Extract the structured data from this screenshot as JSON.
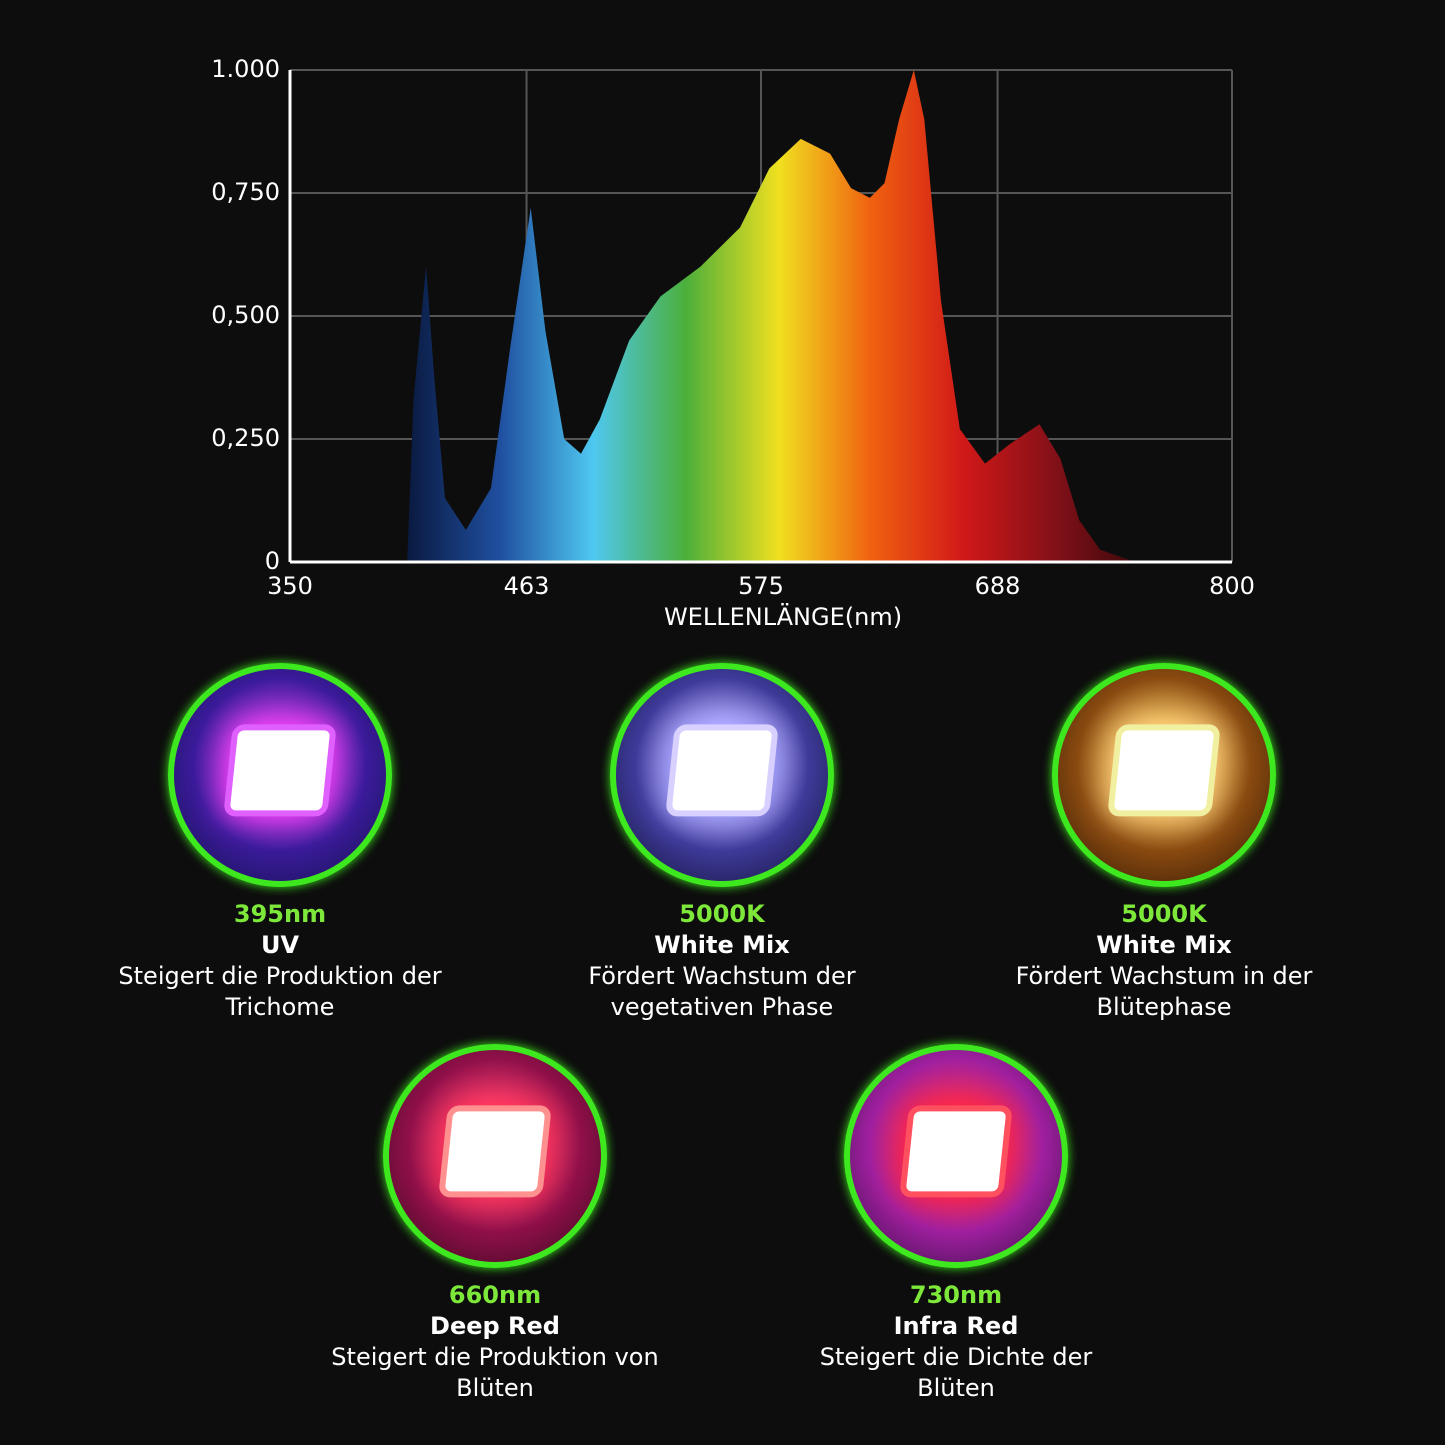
{
  "chart_data": {
    "type": "area",
    "x_label": "WELLENLÄNGE(nm)",
    "x": [
      406,
      409,
      415,
      419,
      424,
      434,
      446,
      455,
      465,
      472,
      481,
      489,
      498,
      512,
      527,
      546,
      565,
      579,
      594,
      608,
      618,
      627,
      634,
      641,
      648,
      653,
      661,
      670,
      682,
      694,
      708,
      718,
      727,
      737,
      751,
      761
    ],
    "values": [
      0,
      0.33,
      0.6,
      0.37,
      0.13,
      0.065,
      0.15,
      0.43,
      0.72,
      0.47,
      0.25,
      0.22,
      0.29,
      0.45,
      0.54,
      0.6,
      0.68,
      0.8,
      0.86,
      0.83,
      0.76,
      0.74,
      0.77,
      0.9,
      1.0,
      0.9,
      0.53,
      0.27,
      0.2,
      0.24,
      0.28,
      0.21,
      0.085,
      0.025,
      0.004,
      0
    ],
    "colors": [
      "#0a1a40",
      "#1f4fa0",
      "#4ec8f0",
      "#4caf3a",
      "#f0e020",
      "#f06010",
      "#d01818",
      "#801018",
      "#300808"
    ],
    "xlim": [
      350,
      800
    ],
    "ylim": [
      0,
      1
    ],
    "xticks": [
      350,
      463,
      575,
      688,
      800
    ],
    "yticks": [
      0,
      {
        "value": 0.25,
        "label": "0,250"
      },
      {
        "value": 0.5,
        "label": "0,500"
      },
      {
        "value": 0.75,
        "label": "0,750"
      },
      {
        "value": 1,
        "label": "1.000"
      }
    ],
    "grid": true
  },
  "leds": [
    {
      "label": "395nm",
      "name": "UV",
      "desc": [
        "Steigert die Produktion der",
        "Trichome"
      ]
    },
    {
      "label": "5000K",
      "name": "White Mix",
      "desc": [
        "Fördert Wachstum der",
        "vegetativen Phase"
      ]
    },
    {
      "label": "5000K",
      "name": "White Mix",
      "desc": [
        "Fördert Wachstum in der",
        "Blütephase"
      ]
    },
    {
      "label": "660nm",
      "name": "Deep Red",
      "desc": [
        "Steigert die Produktion von",
        "Blüten"
      ]
    },
    {
      "label": "730nm",
      "name": "Infra Red",
      "desc": [
        "Steigert die Dichte der",
        "Blüten"
      ]
    }
  ]
}
